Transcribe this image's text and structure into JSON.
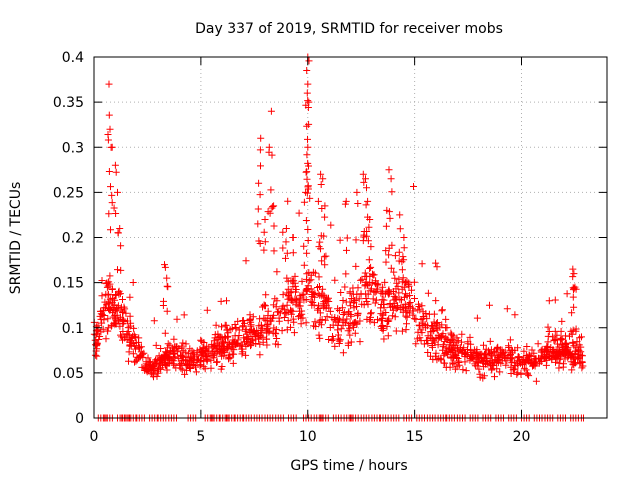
{
  "chart_data": {
    "type": "scatter",
    "title": "Day 337 of 2019, SRMTID for receiver mobs",
    "xlabel": "GPS time / hours",
    "ylabel": "SRMTID / TECUs",
    "xlim": [
      0,
      24
    ],
    "ylim": [
      0,
      0.4
    ],
    "x_ticks": [
      "0",
      "5",
      "10",
      "15",
      "20"
    ],
    "y_ticks": [
      "0",
      "0.05",
      "0.1",
      "0.15",
      "0.2",
      "0.25",
      "0.3",
      "0.35",
      "0.4"
    ],
    "x_tick_values": [
      0,
      5,
      10,
      15,
      20
    ],
    "y_tick_values": [
      0,
      0.05,
      0.1,
      0.15,
      0.2,
      0.25,
      0.3,
      0.35,
      0.4
    ],
    "grid": true,
    "marker": "+",
    "marker_color": "#ff0000",
    "data_end_hour": 22.9,
    "series": [
      {
        "name": "SRMTID",
        "hourly_level": [
          [
            0.0,
            0.085
          ],
          [
            0.5,
            0.12
          ],
          [
            1.0,
            0.13
          ],
          [
            1.5,
            0.1
          ],
          [
            2.0,
            0.075
          ],
          [
            2.5,
            0.055
          ],
          [
            3.0,
            0.06
          ],
          [
            3.5,
            0.07
          ],
          [
            4.0,
            0.07
          ],
          [
            4.5,
            0.065
          ],
          [
            5.0,
            0.07
          ],
          [
            5.5,
            0.075
          ],
          [
            6.0,
            0.08
          ],
          [
            6.5,
            0.085
          ],
          [
            7.0,
            0.09
          ],
          [
            7.5,
            0.095
          ],
          [
            8.0,
            0.1
          ],
          [
            8.5,
            0.11
          ],
          [
            9.0,
            0.125
          ],
          [
            9.5,
            0.13
          ],
          [
            10.0,
            0.14
          ],
          [
            10.5,
            0.13
          ],
          [
            11.0,
            0.11
          ],
          [
            11.5,
            0.1
          ],
          [
            12.0,
            0.11
          ],
          [
            12.5,
            0.13
          ],
          [
            13.0,
            0.14
          ],
          [
            13.5,
            0.12
          ],
          [
            14.0,
            0.13
          ],
          [
            14.5,
            0.13
          ],
          [
            15.0,
            0.12
          ],
          [
            15.5,
            0.1
          ],
          [
            16.0,
            0.09
          ],
          [
            16.5,
            0.08
          ],
          [
            17.0,
            0.075
          ],
          [
            17.5,
            0.07
          ],
          [
            18.0,
            0.065
          ],
          [
            18.5,
            0.065
          ],
          [
            19.0,
            0.07
          ],
          [
            19.5,
            0.065
          ],
          [
            20.0,
            0.06
          ],
          [
            20.5,
            0.065
          ],
          [
            21.0,
            0.07
          ],
          [
            21.5,
            0.075
          ],
          [
            22.0,
            0.075
          ],
          [
            22.5,
            0.07
          ],
          [
            22.9,
            0.065
          ]
        ],
        "peaks": [
          {
            "x": 0.7,
            "y": 0.37
          },
          {
            "x": 0.75,
            "y": 0.32
          },
          {
            "x": 0.85,
            "y": 0.3
          },
          {
            "x": 1.0,
            "y": 0.28
          },
          {
            "x": 1.1,
            "y": 0.25
          },
          {
            "x": 1.2,
            "y": 0.21
          },
          {
            "x": 3.3,
            "y": 0.17
          },
          {
            "x": 3.4,
            "y": 0.155
          },
          {
            "x": 7.8,
            "y": 0.31
          },
          {
            "x": 7.7,
            "y": 0.26
          },
          {
            "x": 8.3,
            "y": 0.34
          },
          {
            "x": 8.2,
            "y": 0.3
          },
          {
            "x": 8.0,
            "y": 0.22
          },
          {
            "x": 8.4,
            "y": 0.235
          },
          {
            "x": 9.0,
            "y": 0.21
          },
          {
            "x": 9.3,
            "y": 0.2
          },
          {
            "x": 10.0,
            "y": 0.4
          },
          {
            "x": 9.95,
            "y": 0.385
          },
          {
            "x": 10.0,
            "y": 0.37
          },
          {
            "x": 9.98,
            "y": 0.36
          },
          {
            "x": 10.05,
            "y": 0.35
          },
          {
            "x": 10.0,
            "y": 0.3
          },
          {
            "x": 9.9,
            "y": 0.25
          },
          {
            "x": 10.6,
            "y": 0.27
          },
          {
            "x": 10.7,
            "y": 0.265
          },
          {
            "x": 10.5,
            "y": 0.24
          },
          {
            "x": 10.8,
            "y": 0.235
          },
          {
            "x": 11.8,
            "y": 0.24
          },
          {
            "x": 12.3,
            "y": 0.25
          },
          {
            "x": 12.6,
            "y": 0.27
          },
          {
            "x": 12.7,
            "y": 0.265
          },
          {
            "x": 12.8,
            "y": 0.24
          },
          {
            "x": 12.9,
            "y": 0.22
          },
          {
            "x": 13.8,
            "y": 0.275
          },
          {
            "x": 13.9,
            "y": 0.265
          },
          {
            "x": 13.7,
            "y": 0.23
          },
          {
            "x": 14.3,
            "y": 0.225
          },
          {
            "x": 14.5,
            "y": 0.2
          },
          {
            "x": 14.1,
            "y": 0.18
          },
          {
            "x": 22.4,
            "y": 0.165
          },
          {
            "x": 22.45,
            "y": 0.16
          },
          {
            "x": 22.5,
            "y": 0.145
          },
          {
            "x": 21.3,
            "y": 0.13
          },
          {
            "x": 16.3,
            "y": 0.12
          },
          {
            "x": 6.2,
            "y": 0.13
          }
        ],
        "zero_points": [
          0.2,
          0.5,
          1.1,
          1.3,
          1.6,
          2.0,
          2.6,
          3.0,
          3.5,
          4.4,
          5.2,
          5.5,
          5.9,
          6.2,
          6.6,
          7.0,
          7.5,
          8.0,
          8.5,
          9.1,
          9.8,
          10.3,
          10.6,
          11.2,
          11.7,
          12.0,
          12.5,
          13.0,
          13.4,
          13.9,
          14.5,
          15.1,
          15.6,
          16.1,
          16.5,
          17.0,
          17.6,
          18.2,
          18.8,
          19.4,
          20.0,
          20.6,
          21.1,
          21.7,
          22.3,
          22.8
        ]
      }
    ]
  }
}
